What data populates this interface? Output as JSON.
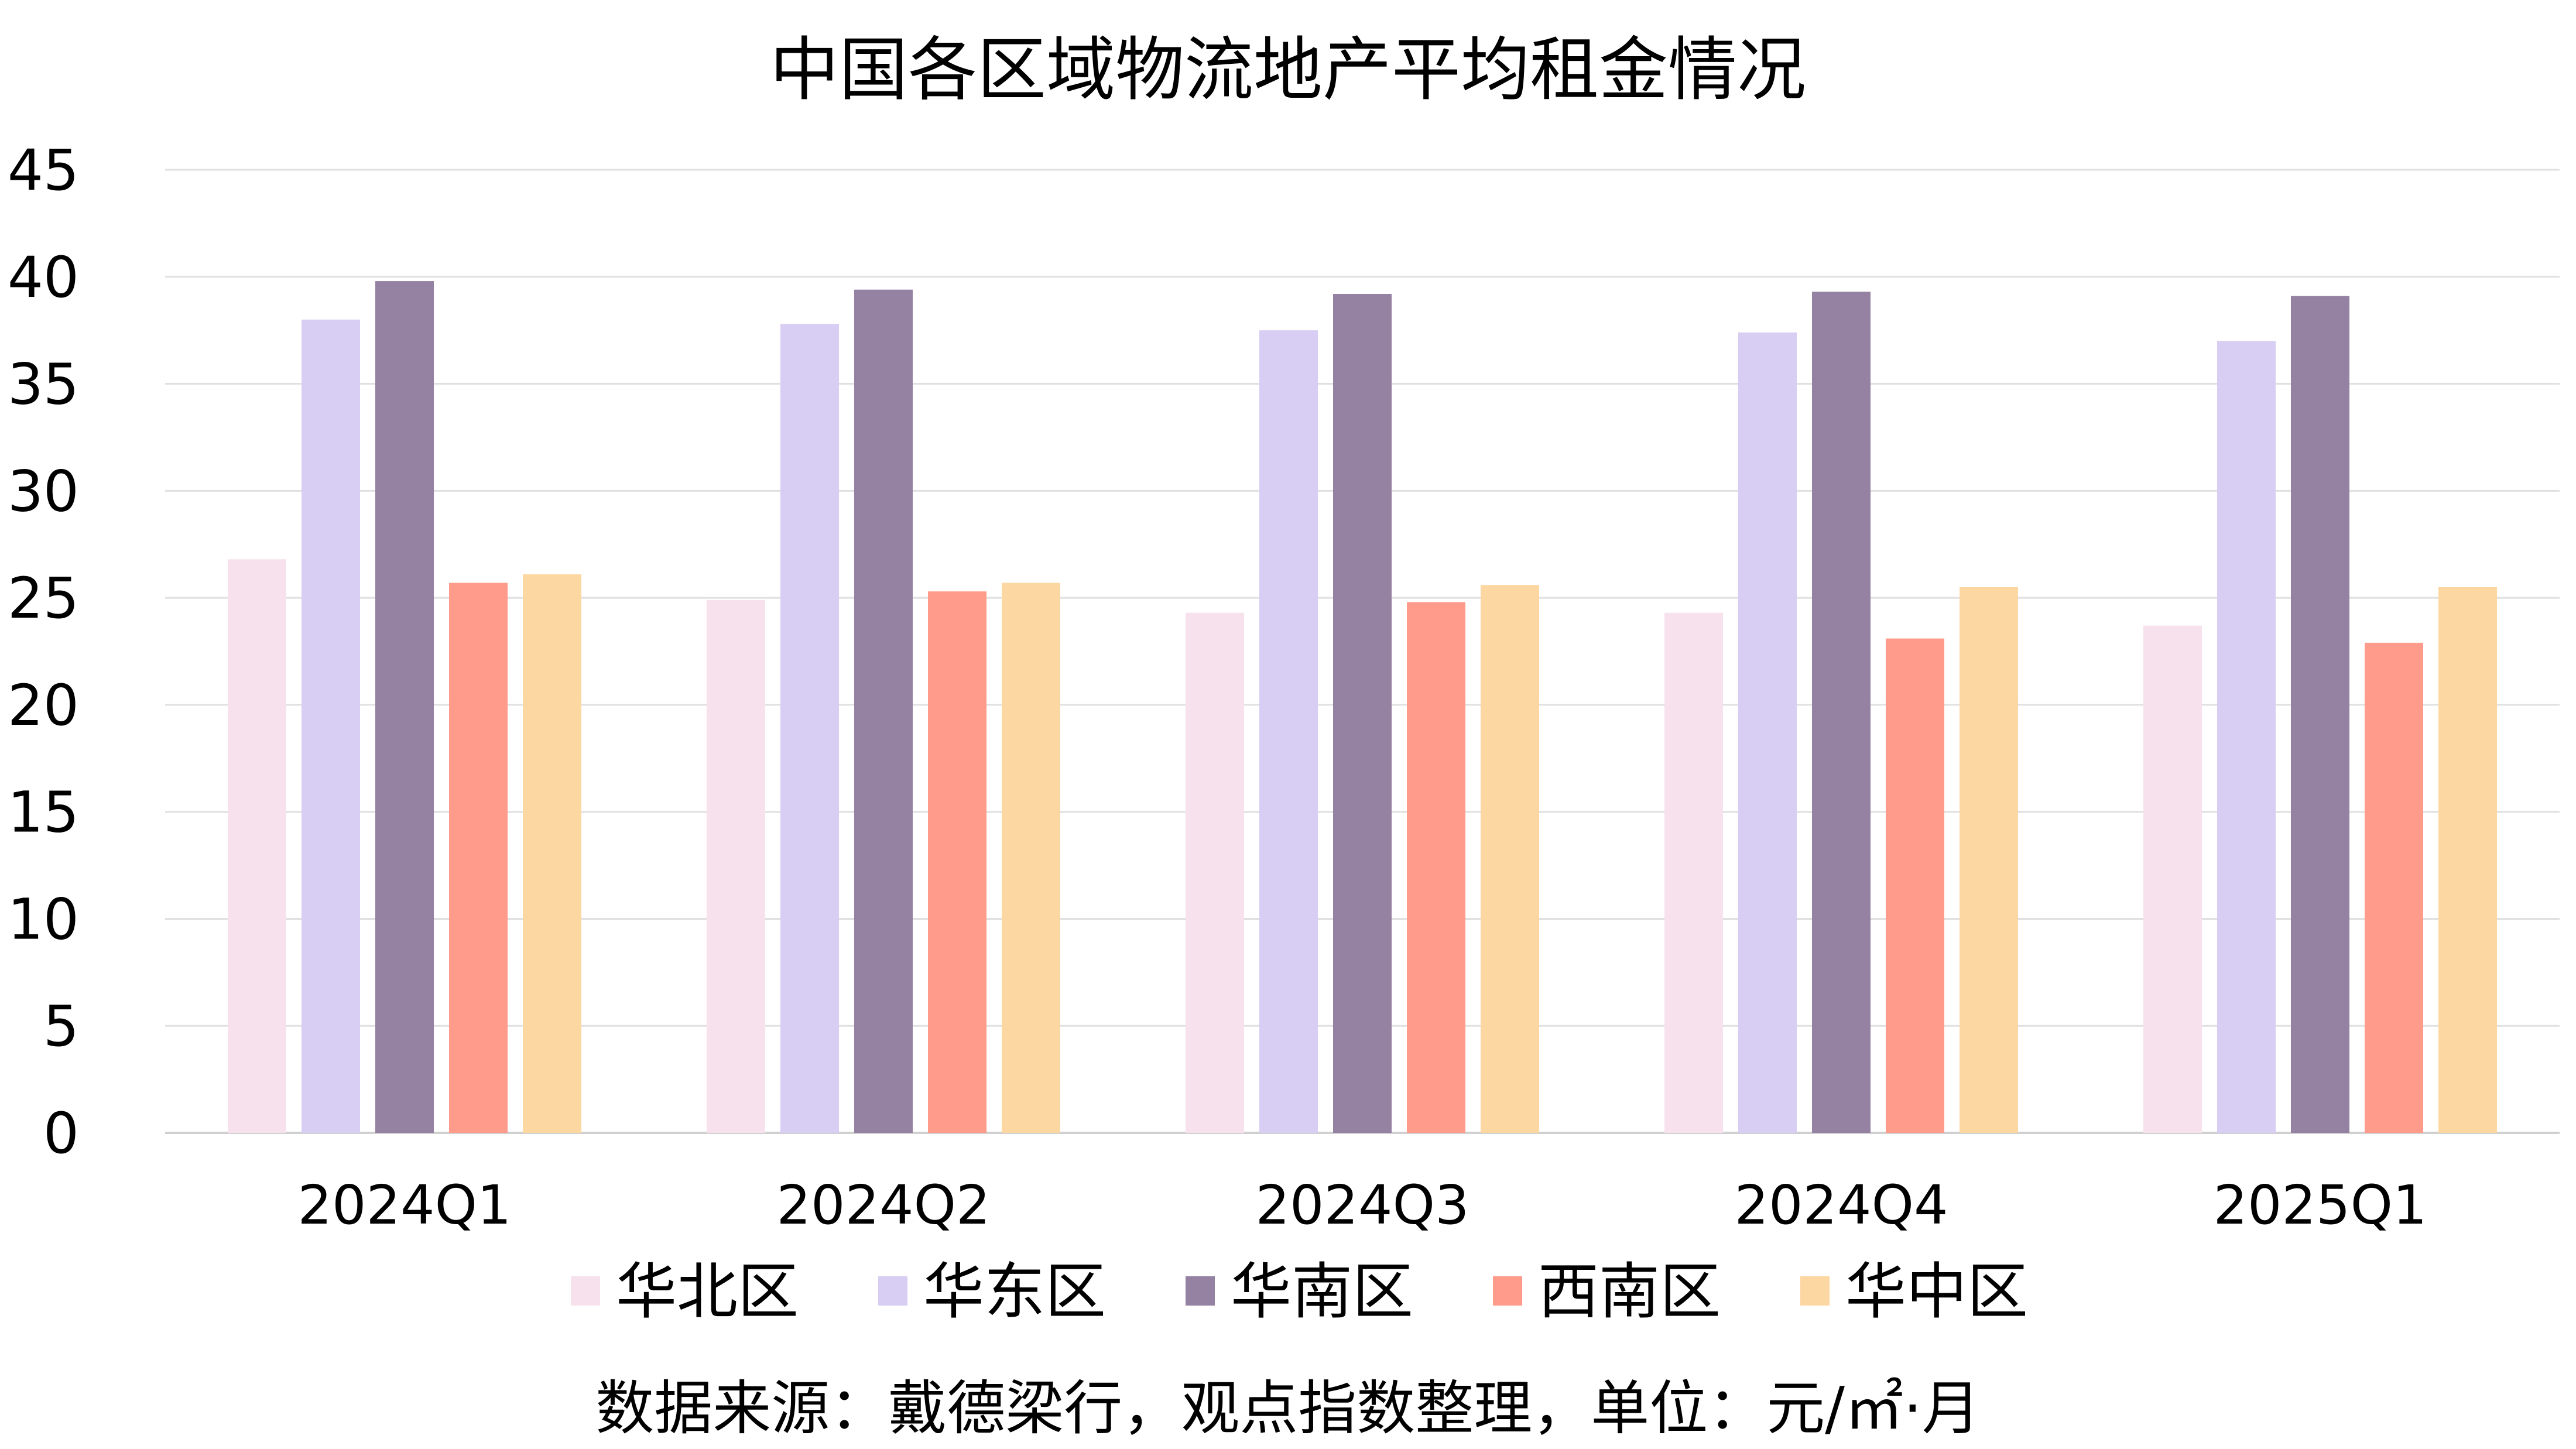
{
  "chart_data": {
    "type": "bar",
    "title": "中国各区域物流地产平均租金情况",
    "categories": [
      "2024Q1",
      "2024Q2",
      "2024Q3",
      "2024Q4",
      "2025Q1"
    ],
    "series": [
      {
        "name": "华北区",
        "color": "#F6E1EC",
        "values": [
          26.8,
          24.9,
          24.3,
          24.3,
          23.7
        ]
      },
      {
        "name": "华东区",
        "color": "#D8CDF3",
        "values": [
          38.0,
          37.8,
          37.5,
          37.4,
          37.0
        ]
      },
      {
        "name": "华南区",
        "color": "#9581A2",
        "values": [
          39.8,
          39.4,
          39.2,
          39.3,
          39.1
        ]
      },
      {
        "name": "西南区",
        "color": "#FE9B8A",
        "values": [
          25.7,
          25.3,
          24.8,
          23.1,
          22.9
        ]
      },
      {
        "name": "华中区",
        "color": "#FDD7A2",
        "values": [
          26.1,
          25.7,
          25.6,
          25.5,
          25.5
        ]
      }
    ],
    "ylim": [
      0,
      45
    ],
    "yticks": [
      0,
      5,
      10,
      15,
      20,
      25,
      30,
      35,
      40,
      45
    ],
    "grid": true,
    "legend_position": "bottom",
    "xlabel": "",
    "ylabel": "",
    "source_note": "数据来源：戴德梁行，观点指数整理，单位：元/㎡·月"
  }
}
